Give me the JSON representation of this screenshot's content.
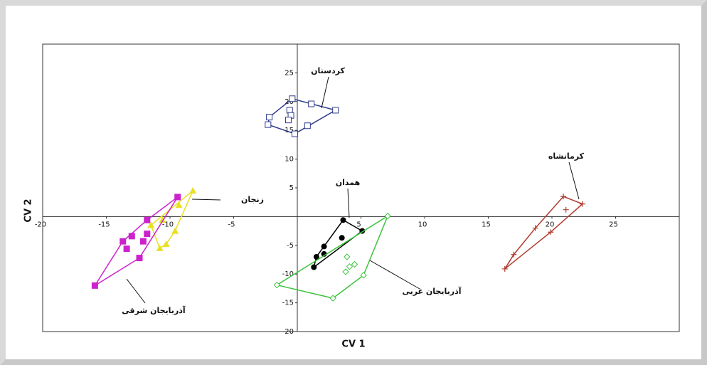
{
  "chart_data": {
    "type": "scatter",
    "x_label": "CV 1",
    "y_label": "CV 2",
    "xlim": [
      -20,
      30
    ],
    "ylim": [
      -20,
      30
    ],
    "xticks": [
      -20,
      -15,
      -10,
      -5,
      5,
      10,
      15,
      20,
      25
    ],
    "yticks": [
      -20,
      -15,
      -10,
      -5,
      5,
      10,
      15,
      20,
      25
    ],
    "hull": true,
    "series": [
      {
        "name": "کردستان",
        "color": "#2e3a8c",
        "marker": "open-square",
        "x": [
          -0.4,
          1.1,
          3.0,
          -0.6,
          -0.5,
          -2.2,
          -0.7,
          -2.3,
          0.8,
          -0.2
        ],
        "y": [
          20.5,
          19.6,
          18.5,
          18.5,
          17.6,
          17.3,
          16.8,
          16.0,
          15.8,
          14.4
        ]
      },
      {
        "name": "کرمانشاه",
        "color": "#b03a2e",
        "marker": "plus",
        "x": [
          20.9,
          22.4,
          21.1,
          18.7,
          19.9,
          17.0,
          16.3
        ],
        "y": [
          3.5,
          2.2,
          1.2,
          -2.0,
          -2.7,
          -6.6,
          -9.1
        ]
      },
      {
        "name": "همدان",
        "color": "#000000",
        "marker": "filled-circle",
        "x": [
          3.6,
          5.1,
          3.5,
          2.1,
          2.1,
          1.5,
          1.3
        ],
        "y": [
          -0.6,
          -2.5,
          -3.7,
          -5.2,
          -6.5,
          -7.0,
          -8.8
        ]
      },
      {
        "name": "زنجان",
        "color": "#3ec43e",
        "marker": "open-diamond",
        "x": [
          7.1,
          3.9,
          4.5,
          4.1,
          3.8,
          5.2,
          -1.6,
          2.8
        ],
        "y": [
          0.1,
          -7.0,
          -8.3,
          -8.7,
          -9.6,
          -10.2,
          -11.9,
          -14.2
        ]
      },
      {
        "name": "آذربایجان شرقی",
        "color": "#e8e020",
        "marker": "filled-triangle",
        "x": [
          -8.2,
          -9.3,
          -10.6,
          -11.5,
          -9.6,
          -10.3,
          -10.8
        ],
        "y": [
          4.5,
          2.0,
          -0.6,
          -1.5,
          -2.5,
          -4.8,
          -5.5
        ]
      },
      {
        "name": "آذربایجان غربی",
        "color": "#cc22cc",
        "marker": "filled-square",
        "x": [
          -9.4,
          -11.8,
          -11.8,
          -13.0,
          -12.1,
          -13.7,
          -13.4,
          -12.4,
          -15.9
        ],
        "y": [
          3.4,
          -0.6,
          -3.0,
          -3.4,
          -4.3,
          -4.3,
          -5.6,
          -7.2,
          -12.0
        ]
      }
    ]
  }
}
